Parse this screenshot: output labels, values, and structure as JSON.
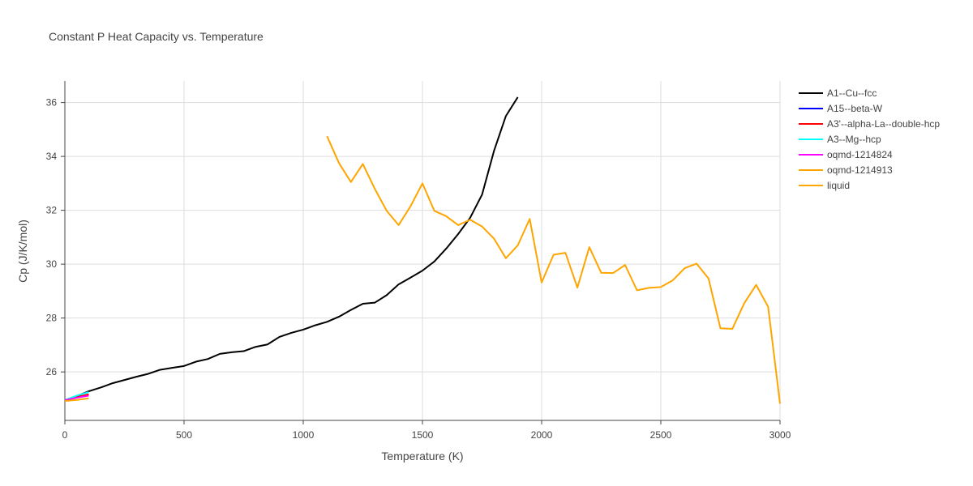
{
  "chart_data": {
    "type": "line",
    "title": "Constant P Heat Capacity vs. Temperature",
    "xlabel": "Temperature (K)",
    "ylabel": "Cp (J/K/mol)",
    "xlim": [
      0,
      3000
    ],
    "ylim": [
      24.2,
      36.8
    ],
    "xticks": [
      0,
      500,
      1000,
      1500,
      2000,
      2500,
      3000
    ],
    "yticks": [
      26,
      28,
      30,
      32,
      34,
      36
    ],
    "grid": true,
    "legend_position": "top-right",
    "series": [
      {
        "name": "A1--Cu--fcc",
        "color": "#000000",
        "x": [
          0,
          50,
          100,
          150,
          200,
          250,
          300,
          350,
          400,
          450,
          500,
          550,
          600,
          650,
          700,
          750,
          800,
          850,
          900,
          950,
          1000,
          1050,
          1100,
          1150,
          1200,
          1250,
          1300,
          1350,
          1400,
          1450,
          1500,
          1550,
          1600,
          1650,
          1700,
          1750,
          1800,
          1850,
          1900
        ],
        "y": [
          24.95,
          25.1,
          25.28,
          25.42,
          25.58,
          25.7,
          25.82,
          25.93,
          26.08,
          26.15,
          26.22,
          26.38,
          26.48,
          26.67,
          26.73,
          26.77,
          26.93,
          27.02,
          27.3,
          27.45,
          27.57,
          27.73,
          27.86,
          28.05,
          28.3,
          28.53,
          28.57,
          28.85,
          29.25,
          29.5,
          29.76,
          30.1,
          30.58,
          31.12,
          31.72,
          32.58,
          34.2,
          35.5,
          36.2
        ]
      },
      {
        "name": "A15--beta-W",
        "color": "#0000ff",
        "x": [
          0,
          50,
          100
        ],
        "y": [
          24.95,
          25.05,
          25.15
        ]
      },
      {
        "name": "A3'--alpha-La--double-hcp",
        "color": "#ff0000",
        "x": [
          0,
          50,
          100
        ],
        "y": [
          24.95,
          25.06,
          25.17
        ]
      },
      {
        "name": "A3--Mg--hcp",
        "color": "#00ffff",
        "x": [
          0,
          50,
          100
        ],
        "y": [
          24.95,
          25.12,
          25.25
        ]
      },
      {
        "name": "oqmd-1214824",
        "color": "#ff00ff",
        "x": [
          0,
          50,
          100
        ],
        "y": [
          24.95,
          25.04,
          25.12
        ]
      },
      {
        "name": "oqmd-1214913",
        "color": "#ffa500",
        "x": [
          0,
          50,
          100
        ],
        "y": [
          24.92,
          24.96,
          25.02
        ]
      },
      {
        "name": "liquid",
        "color": "#ffa500",
        "x": [
          1100,
          1150,
          1200,
          1250,
          1300,
          1350,
          1400,
          1450,
          1500,
          1550,
          1600,
          1650,
          1700,
          1750,
          1800,
          1850,
          1900,
          1950,
          2000,
          2050,
          2100,
          2150,
          2200,
          2250,
          2300,
          2350,
          2400,
          2450,
          2500,
          2550,
          2600,
          2650,
          2700,
          2750,
          2800,
          2850,
          2900,
          2950,
          3000
        ],
        "y": [
          34.75,
          33.75,
          33.05,
          33.72,
          32.8,
          31.98,
          31.45,
          32.15,
          33.0,
          31.98,
          31.78,
          31.45,
          31.65,
          31.4,
          30.95,
          30.22,
          30.7,
          31.68,
          29.32,
          30.35,
          30.42,
          29.13,
          30.63,
          29.68,
          29.67,
          29.97,
          29.03,
          29.12,
          29.15,
          29.4,
          29.85,
          30.02,
          29.47,
          27.62,
          27.6,
          28.55,
          29.23,
          28.42,
          24.82
        ]
      }
    ]
  }
}
